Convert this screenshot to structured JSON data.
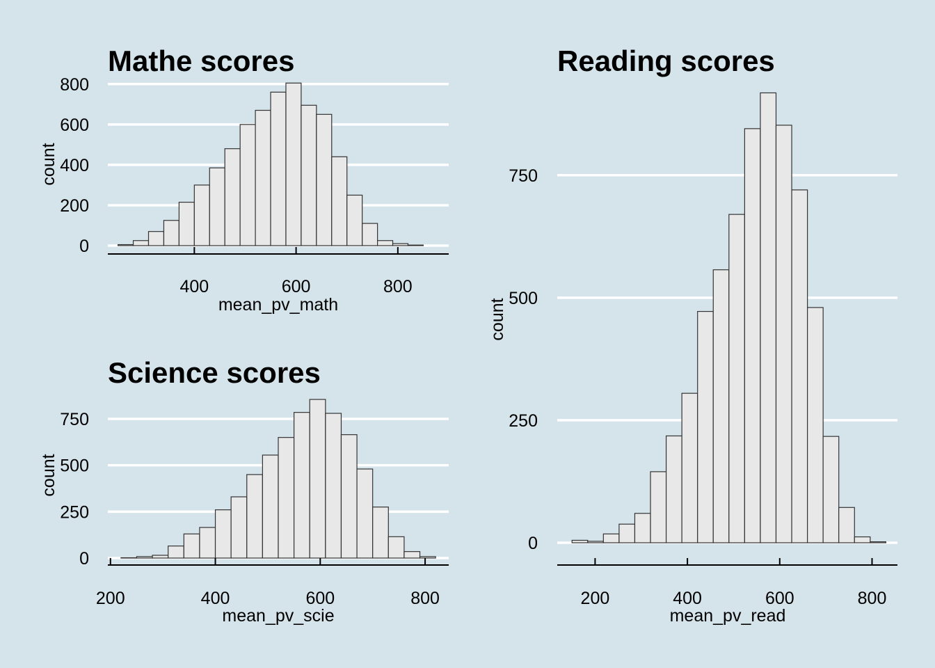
{
  "chart_data": [
    {
      "type": "bar",
      "title": "Mathe scores",
      "xlabel": "mean_pv_math",
      "ylabel": "count",
      "bin_width": 30,
      "bins": [
        {
          "x": 265,
          "count": 5
        },
        {
          "x": 295,
          "count": 25
        },
        {
          "x": 325,
          "count": 70
        },
        {
          "x": 355,
          "count": 125
        },
        {
          "x": 385,
          "count": 215
        },
        {
          "x": 415,
          "count": 300
        },
        {
          "x": 445,
          "count": 385
        },
        {
          "x": 475,
          "count": 480
        },
        {
          "x": 505,
          "count": 600
        },
        {
          "x": 535,
          "count": 670
        },
        {
          "x": 565,
          "count": 760
        },
        {
          "x": 595,
          "count": 805
        },
        {
          "x": 625,
          "count": 695
        },
        {
          "x": 655,
          "count": 650
        },
        {
          "x": 685,
          "count": 440
        },
        {
          "x": 715,
          "count": 250
        },
        {
          "x": 745,
          "count": 110
        },
        {
          "x": 775,
          "count": 25
        },
        {
          "x": 805,
          "count": 10
        },
        {
          "x": 835,
          "count": 3
        }
      ],
      "xlim": [
        230,
        900
      ],
      "ylim": [
        0,
        820
      ],
      "x_ticks": [
        "400",
        "600",
        "800"
      ],
      "y_ticks": [
        "0",
        "200",
        "400",
        "600",
        "800"
      ],
      "grid": "horizontal"
    },
    {
      "type": "bar",
      "title": "Science scores",
      "xlabel": "mean_pv_scie",
      "ylabel": "count",
      "bin_width": 30,
      "bins": [
        {
          "x": 235,
          "count": 2
        },
        {
          "x": 265,
          "count": 8
        },
        {
          "x": 295,
          "count": 15
        },
        {
          "x": 325,
          "count": 65
        },
        {
          "x": 355,
          "count": 130
        },
        {
          "x": 385,
          "count": 165
        },
        {
          "x": 415,
          "count": 260
        },
        {
          "x": 445,
          "count": 330
        },
        {
          "x": 475,
          "count": 450
        },
        {
          "x": 505,
          "count": 555
        },
        {
          "x": 535,
          "count": 650
        },
        {
          "x": 565,
          "count": 785
        },
        {
          "x": 595,
          "count": 855
        },
        {
          "x": 625,
          "count": 780
        },
        {
          "x": 655,
          "count": 665
        },
        {
          "x": 685,
          "count": 480
        },
        {
          "x": 715,
          "count": 275
        },
        {
          "x": 745,
          "count": 115
        },
        {
          "x": 775,
          "count": 35
        },
        {
          "x": 805,
          "count": 8
        }
      ],
      "xlim": [
        195,
        845
      ],
      "ylim": [
        0,
        870
      ],
      "x_ticks": [
        "200",
        "400",
        "600",
        "800"
      ],
      "y_ticks": [
        "0",
        "250",
        "500",
        "750"
      ],
      "grid": "horizontal"
    },
    {
      "type": "bar",
      "title": "Reading scores",
      "xlabel": "mean_pv_read",
      "ylabel": "count",
      "bin_width": 34,
      "bins": [
        {
          "x": 167,
          "count": 5
        },
        {
          "x": 201,
          "count": 3
        },
        {
          "x": 235,
          "count": 18
        },
        {
          "x": 269,
          "count": 38
        },
        {
          "x": 303,
          "count": 60
        },
        {
          "x": 337,
          "count": 145
        },
        {
          "x": 371,
          "count": 218
        },
        {
          "x": 405,
          "count": 305
        },
        {
          "x": 439,
          "count": 472
        },
        {
          "x": 473,
          "count": 557
        },
        {
          "x": 507,
          "count": 670
        },
        {
          "x": 541,
          "count": 845
        },
        {
          "x": 575,
          "count": 918
        },
        {
          "x": 609,
          "count": 852
        },
        {
          "x": 643,
          "count": 720
        },
        {
          "x": 677,
          "count": 480
        },
        {
          "x": 711,
          "count": 217
        },
        {
          "x": 745,
          "count": 72
        },
        {
          "x": 779,
          "count": 12
        },
        {
          "x": 813,
          "count": 2
        }
      ],
      "xlim": [
        118,
        855
      ],
      "ylim": [
        0,
        930
      ],
      "x_ticks": [
        "200",
        "400",
        "600",
        "800"
      ],
      "y_ticks": [
        "0",
        "250",
        "500",
        "750"
      ],
      "grid": "horizontal"
    }
  ]
}
